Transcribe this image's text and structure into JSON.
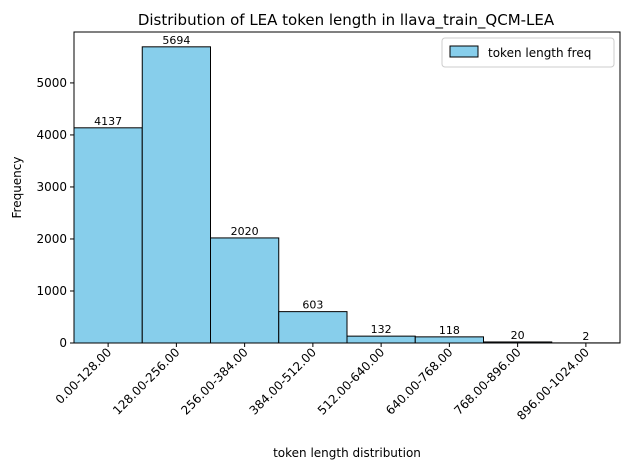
{
  "chart_data": {
    "type": "bar",
    "title": "Distribution of LEA token length in llava_train_QCM-LEA",
    "xlabel": "token length distribution",
    "ylabel": "Frequency",
    "categories": [
      "0.00-128.00",
      "128.00-256.00",
      "256.00-384.00",
      "384.00-512.00",
      "512.00-640.00",
      "640.00-768.00",
      "768.00-896.00",
      "896.00-1024.00"
    ],
    "series": [
      {
        "name": "token length freq",
        "values": [
          4137,
          5694,
          2020,
          603,
          132,
          118,
          20,
          2
        ]
      }
    ],
    "yticks": [
      0,
      1000,
      2000,
      3000,
      4000,
      5000
    ],
    "ylim": [
      0,
      5979
    ],
    "grid": false,
    "legend_position": "top-right",
    "bar_color": "#87CEEB",
    "edge_color": "#000000"
  }
}
